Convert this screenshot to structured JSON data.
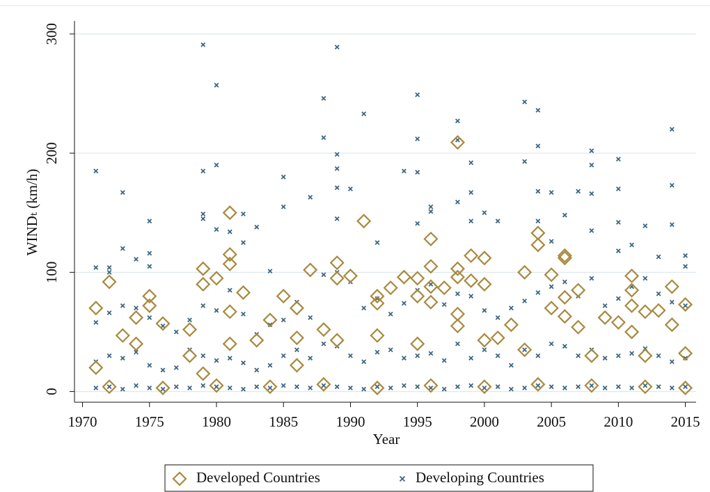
{
  "chart_data": {
    "type": "scatter",
    "x_label": "Year",
    "y_label": "WINDₜ (km/h)",
    "xlim": [
      1969.4,
      2015.8
    ],
    "ylim": [
      -9,
      311
    ],
    "xticks": [
      1970,
      1975,
      1980,
      1985,
      1990,
      1995,
      2000,
      2005,
      2010,
      2015
    ],
    "yticks": [
      0,
      100,
      200,
      300
    ],
    "grid": true,
    "legend": "bottom",
    "series": [
      {
        "name": "Developed Countries",
        "color": "#a8893e",
        "marker": "diamond",
        "x": [
          1971,
          1971,
          1972,
          1973,
          1974,
          1974,
          1975,
          1975,
          1976,
          1978,
          1978,
          1979,
          1979,
          1979,
          1980,
          1981,
          1981,
          1981,
          1981,
          1981,
          1982,
          1983,
          1984,
          1985,
          1986,
          1986,
          1986,
          1987,
          1988,
          1989,
          1989,
          1989,
          1990,
          1991,
          1992,
          1992,
          1992,
          1993,
          1994,
          1995,
          1995,
          1995,
          1996,
          1996,
          1996,
          1996,
          1997,
          1998,
          1998,
          1998,
          1998,
          1998,
          1999,
          1999,
          2000,
          2000,
          2000,
          2001,
          2002,
          2003,
          2003,
          2004,
          2004,
          2005,
          2005,
          2006,
          2006,
          2006,
          2006,
          2007,
          2007,
          2008,
          2009,
          2010,
          2011,
          2011,
          2011,
          2011,
          2012,
          2012,
          2013,
          2014,
          2014,
          2015,
          2015,
          1972,
          1976,
          1980,
          1984,
          1988,
          1992,
          1996,
          2000,
          2004,
          2008,
          2012,
          2015
        ],
        "values": [
          70,
          20,
          92,
          47,
          62,
          40,
          80,
          72,
          57,
          52,
          30,
          103,
          90,
          15,
          95,
          150,
          115,
          107,
          67,
          40,
          83,
          43,
          60,
          80,
          70,
          45,
          22,
          102,
          52,
          108,
          95,
          43,
          97,
          143,
          80,
          74,
          47,
          87,
          96,
          95,
          80,
          40,
          128,
          105,
          88,
          75,
          87,
          209,
          103,
          96,
          65,
          55,
          114,
          93,
          112,
          90,
          43,
          45,
          56,
          100,
          35,
          133,
          123,
          98,
          70,
          114,
          112,
          79,
          63,
          85,
          54,
          30,
          62,
          58,
          97,
          85,
          72,
          50,
          67,
          30,
          68,
          88,
          56,
          73,
          32,
          4,
          3,
          5,
          4,
          6,
          3,
          5,
          4,
          6,
          5,
          4,
          3
        ]
      },
      {
        "name": "Developing Countries",
        "color": "#3e6680",
        "marker": "x",
        "x": [
          1971,
          1971,
          1972,
          1972,
          1973,
          1973,
          1974,
          1975,
          1975,
          1975,
          1979,
          1979,
          1979,
          1979,
          1980,
          1980,
          1980,
          1981,
          1982,
          1982,
          1983,
          1984,
          1985,
          1985,
          1987,
          1988,
          1988,
          1989,
          1989,
          1989,
          1989,
          1989,
          1990,
          1991,
          1992,
          1994,
          1995,
          1995,
          1995,
          1995,
          1996,
          1996,
          1998,
          1998,
          1998,
          1999,
          1999,
          1999,
          2000,
          2001,
          2003,
          2003,
          2004,
          2004,
          2004,
          2004,
          2005,
          2005,
          2006,
          2007,
          2008,
          2008,
          2008,
          2008,
          2010,
          2010,
          2010,
          2010,
          2011,
          2012,
          2013,
          2014,
          2014,
          2014,
          2015,
          2015,
          1971,
          1972,
          1973,
          1974,
          1975,
          1976,
          1977,
          1978,
          1979,
          1980,
          1981,
          1982,
          1983,
          1984,
          1985,
          1986,
          1987,
          1988,
          1989,
          1990,
          1991,
          1992,
          1993,
          1994,
          1995,
          1996,
          1997,
          1998,
          1999,
          2000,
          2001,
          2002,
          2003,
          2004,
          2005,
          2006,
          2007,
          2008,
          2009,
          2010,
          2011,
          2012,
          2013,
          2014,
          2015,
          1971,
          1972,
          1973,
          1974,
          1975,
          1976,
          1977,
          1978,
          1979,
          1980,
          1981,
          1982,
          1983,
          1984,
          1985,
          1986,
          1987,
          1988,
          1989,
          1990,
          1991,
          1992,
          1993,
          1994,
          1995,
          1996,
          1997,
          1998,
          1999,
          2000,
          2001,
          2002,
          2003,
          2004,
          2005,
          2006,
          2007,
          2008,
          2009,
          2010,
          2011,
          2012,
          2013,
          2014,
          2015,
          1971,
          1972,
          1973,
          1974,
          1975,
          1976,
          1977,
          1978,
          1979,
          1980,
          1981,
          1982,
          1983,
          1984,
          1985,
          1986,
          1987,
          1988,
          1989,
          1990,
          1991,
          1992,
          1993,
          1994,
          1995,
          1996,
          1997,
          1998,
          1999,
          2000,
          2001,
          2002,
          2003,
          2004,
          2005,
          2006,
          2007,
          2008,
          2009,
          2010,
          2011,
          2012,
          2013,
          2014,
          2015
        ],
        "values": [
          185,
          104,
          100,
          104,
          167,
          120,
          111,
          143,
          116,
          105,
          291,
          185,
          149,
          145,
          257,
          190,
          136,
          134,
          149,
          125,
          138,
          101,
          180,
          155,
          163,
          246,
          213,
          289,
          199,
          187,
          171,
          145,
          170,
          233,
          125,
          185,
          249,
          212,
          184,
          141,
          155,
          151,
          227,
          211,
          159,
          192,
          167,
          143,
          150,
          143,
          243,
          193,
          236,
          206,
          168,
          143,
          167,
          126,
          148,
          168,
          202,
          190,
          166,
          135,
          195,
          170,
          142,
          118,
          123,
          139,
          113,
          220,
          173,
          140,
          114,
          105,
          58,
          66,
          72,
          70,
          62,
          55,
          50,
          60,
          72,
          68,
          85,
          65,
          48,
          56,
          60,
          75,
          62,
          98,
          100,
          92,
          70,
          78,
          65,
          74,
          85,
          90,
          73,
          82,
          80,
          68,
          62,
          70,
          76,
          83,
          88,
          92,
          80,
          95,
          72,
          78,
          88,
          95,
          82,
          75,
          72,
          25,
          30,
          28,
          33,
          22,
          18,
          20,
          35,
          30,
          26,
          28,
          24,
          18,
          22,
          30,
          35,
          28,
          40,
          38,
          30,
          25,
          33,
          35,
          28,
          30,
          32,
          26,
          40,
          28,
          35,
          30,
          22,
          35,
          30,
          40,
          38,
          30,
          35,
          28,
          30,
          32,
          36,
          30,
          25,
          28,
          3,
          4,
          2,
          5,
          3,
          2,
          4,
          3,
          5,
          4,
          3,
          2,
          4,
          3,
          5,
          4,
          3,
          5,
          4,
          3,
          2,
          4,
          3,
          5,
          4,
          3,
          2,
          4,
          5,
          3,
          4,
          2,
          3,
          5,
          4,
          3,
          4,
          5,
          3,
          4,
          3,
          5,
          4,
          3,
          4
        ]
      }
    ]
  }
}
